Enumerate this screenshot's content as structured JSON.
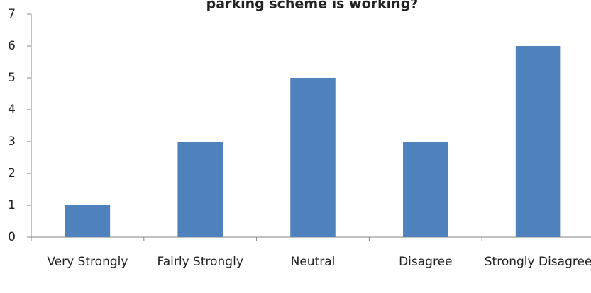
{
  "chart_data": {
    "type": "bar",
    "title": "parking scheme is working?",
    "categories": [
      "Very Strongly",
      "Fairly Strongly",
      "Neutral",
      "Disagree",
      "Strongly Disagree"
    ],
    "values": [
      1,
      3,
      5,
      3,
      6
    ],
    "color": "#4f81bd",
    "ylim": [
      0,
      7
    ],
    "yticks": [
      0,
      1,
      2,
      3,
      4,
      5,
      6,
      7
    ],
    "grid": false
  }
}
